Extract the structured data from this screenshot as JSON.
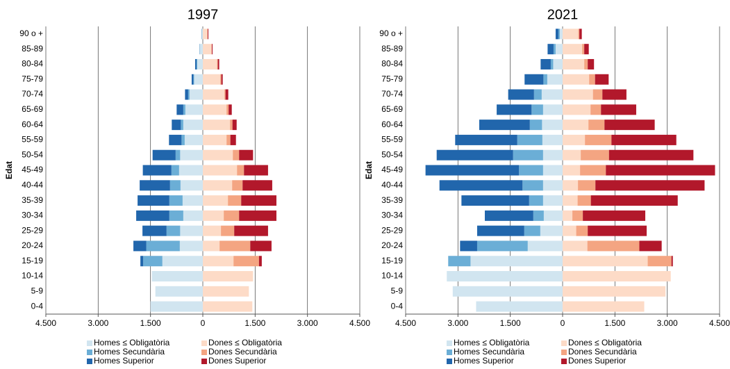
{
  "chart_data": [
    {
      "type": "bar",
      "orientation": "horizontal",
      "stacked": true,
      "title": "1997",
      "y_label": "Edat",
      "grid": true,
      "categories": [
        "90 o +",
        "85-89",
        "80-84",
        "75-79",
        "70-74",
        "65-69",
        "60-64",
        "55-59",
        "50-54",
        "45-49",
        "40-44",
        "35-39",
        "30-34",
        "25-29",
        "20-24",
        "15-19",
        "10-14",
        "5-9",
        "0-4"
      ],
      "xlim": [
        -4500,
        4500
      ],
      "xticks": [
        {
          "value": -4500,
          "label": "4.500"
        },
        {
          "value": -3000,
          "label": "3.000"
        },
        {
          "value": -1500,
          "label": "1.500"
        },
        0,
        {
          "value": 1500,
          "label": "1.500"
        },
        {
          "value": 3000,
          "label": "3.000"
        },
        {
          "value": 4500,
          "label": "4.500"
        }
      ],
      "series": [
        {
          "name": "Homes ≤ Obligatòria",
          "color": "#d1e5f0",
          "values": [
            -30,
            -90,
            -160,
            -250,
            -380,
            -500,
            -560,
            -520,
            -650,
            -680,
            -640,
            -580,
            -560,
            -650,
            -660,
            -1160,
            -1460,
            -1360,
            -1500
          ]
        },
        {
          "name": "Homes Secundària",
          "color": "#6baed6",
          "values": [
            -5,
            -5,
            -20,
            -20,
            -40,
            -60,
            -70,
            -90,
            -130,
            -220,
            -300,
            -380,
            -400,
            -390,
            -960,
            -550,
            0,
            0,
            0
          ]
        },
        {
          "name": "Homes Superior",
          "color": "#2166ac",
          "values": [
            -5,
            -5,
            -40,
            -50,
            -90,
            -190,
            -260,
            -360,
            -660,
            -820,
            -870,
            -910,
            -950,
            -690,
            -370,
            -80,
            0,
            0,
            0
          ]
        },
        {
          "name": "Dones ≤ Obligatòria",
          "color": "#fddbc7",
          "values": [
            130,
            250,
            410,
            500,
            620,
            680,
            780,
            680,
            860,
            980,
            840,
            720,
            600,
            520,
            480,
            880,
            1440,
            1320,
            1420
          ]
        },
        {
          "name": "Dones Secundària",
          "color": "#f4a582",
          "values": [
            10,
            10,
            20,
            30,
            30,
            60,
            70,
            110,
            180,
            200,
            300,
            380,
            440,
            380,
            880,
            730,
            0,
            0,
            0
          ]
        },
        {
          "name": "Dones Superior",
          "color": "#b2182b",
          "values": [
            20,
            20,
            40,
            40,
            80,
            90,
            120,
            160,
            400,
            690,
            850,
            1010,
            1070,
            970,
            610,
            80,
            0,
            0,
            0
          ]
        }
      ]
    },
    {
      "type": "bar",
      "orientation": "horizontal",
      "stacked": true,
      "title": "2021",
      "y_label": "Edat",
      "grid": true,
      "categories": [
        "90 o +",
        "85-89",
        "80-84",
        "75-79",
        "70-74",
        "65-69",
        "60-64",
        "55-59",
        "50-54",
        "45-49",
        "40-44",
        "35-39",
        "30-34",
        "25-29",
        "20-24",
        "15-19",
        "10-14",
        "5-9",
        "0-4"
      ],
      "xlim": [
        -4500,
        4500
      ],
      "xticks": [
        {
          "value": -4500,
          "label": "4.500"
        },
        {
          "value": -3000,
          "label": "3.000"
        },
        {
          "value": -1500,
          "label": "1.500"
        },
        0,
        {
          "value": 1500,
          "label": "1.500"
        },
        {
          "value": 3000,
          "label": "3.000"
        },
        {
          "value": 4500,
          "label": "4.500"
        }
      ],
      "series": [
        {
          "name": "Homes ≤ Obligatòria",
          "color": "#d1e5f0",
          "values": [
            -80,
            -200,
            -270,
            -440,
            -600,
            -560,
            -590,
            -580,
            -560,
            -560,
            -560,
            -560,
            -540,
            -640,
            -1000,
            -2640,
            -3320,
            -3150,
            -2480
          ]
        },
        {
          "name": "Homes Secundària",
          "color": "#6baed6",
          "values": [
            -40,
            -60,
            -70,
            -110,
            -220,
            -330,
            -350,
            -720,
            -860,
            -690,
            -590,
            -400,
            -300,
            -460,
            -1450,
            -640,
            0,
            0,
            0
          ]
        },
        {
          "name": "Homes Superior",
          "color": "#2166ac",
          "values": [
            -80,
            -170,
            -290,
            -540,
            -740,
            -1000,
            -1450,
            -1780,
            -2190,
            -2680,
            -2380,
            -1940,
            -1390,
            -1350,
            -490,
            0,
            0,
            0,
            0
          ]
        },
        {
          "name": "Dones ≤ Obligatòria",
          "color": "#fddbc7",
          "values": [
            450,
            560,
            620,
            760,
            870,
            800,
            740,
            640,
            520,
            500,
            440,
            430,
            280,
            390,
            710,
            2440,
            3100,
            2950,
            2340
          ]
        },
        {
          "name": "Dones Secundària",
          "color": "#f4a582",
          "values": [
            30,
            60,
            100,
            170,
            270,
            300,
            460,
            760,
            810,
            740,
            500,
            380,
            300,
            330,
            1490,
            680,
            0,
            0,
            0
          ]
        },
        {
          "name": "Dones Superior",
          "color": "#b2182b",
          "values": [
            70,
            130,
            180,
            390,
            690,
            1010,
            1440,
            1860,
            2420,
            3130,
            3130,
            2490,
            1790,
            1690,
            640,
            40,
            0,
            0,
            0
          ]
        }
      ]
    }
  ]
}
